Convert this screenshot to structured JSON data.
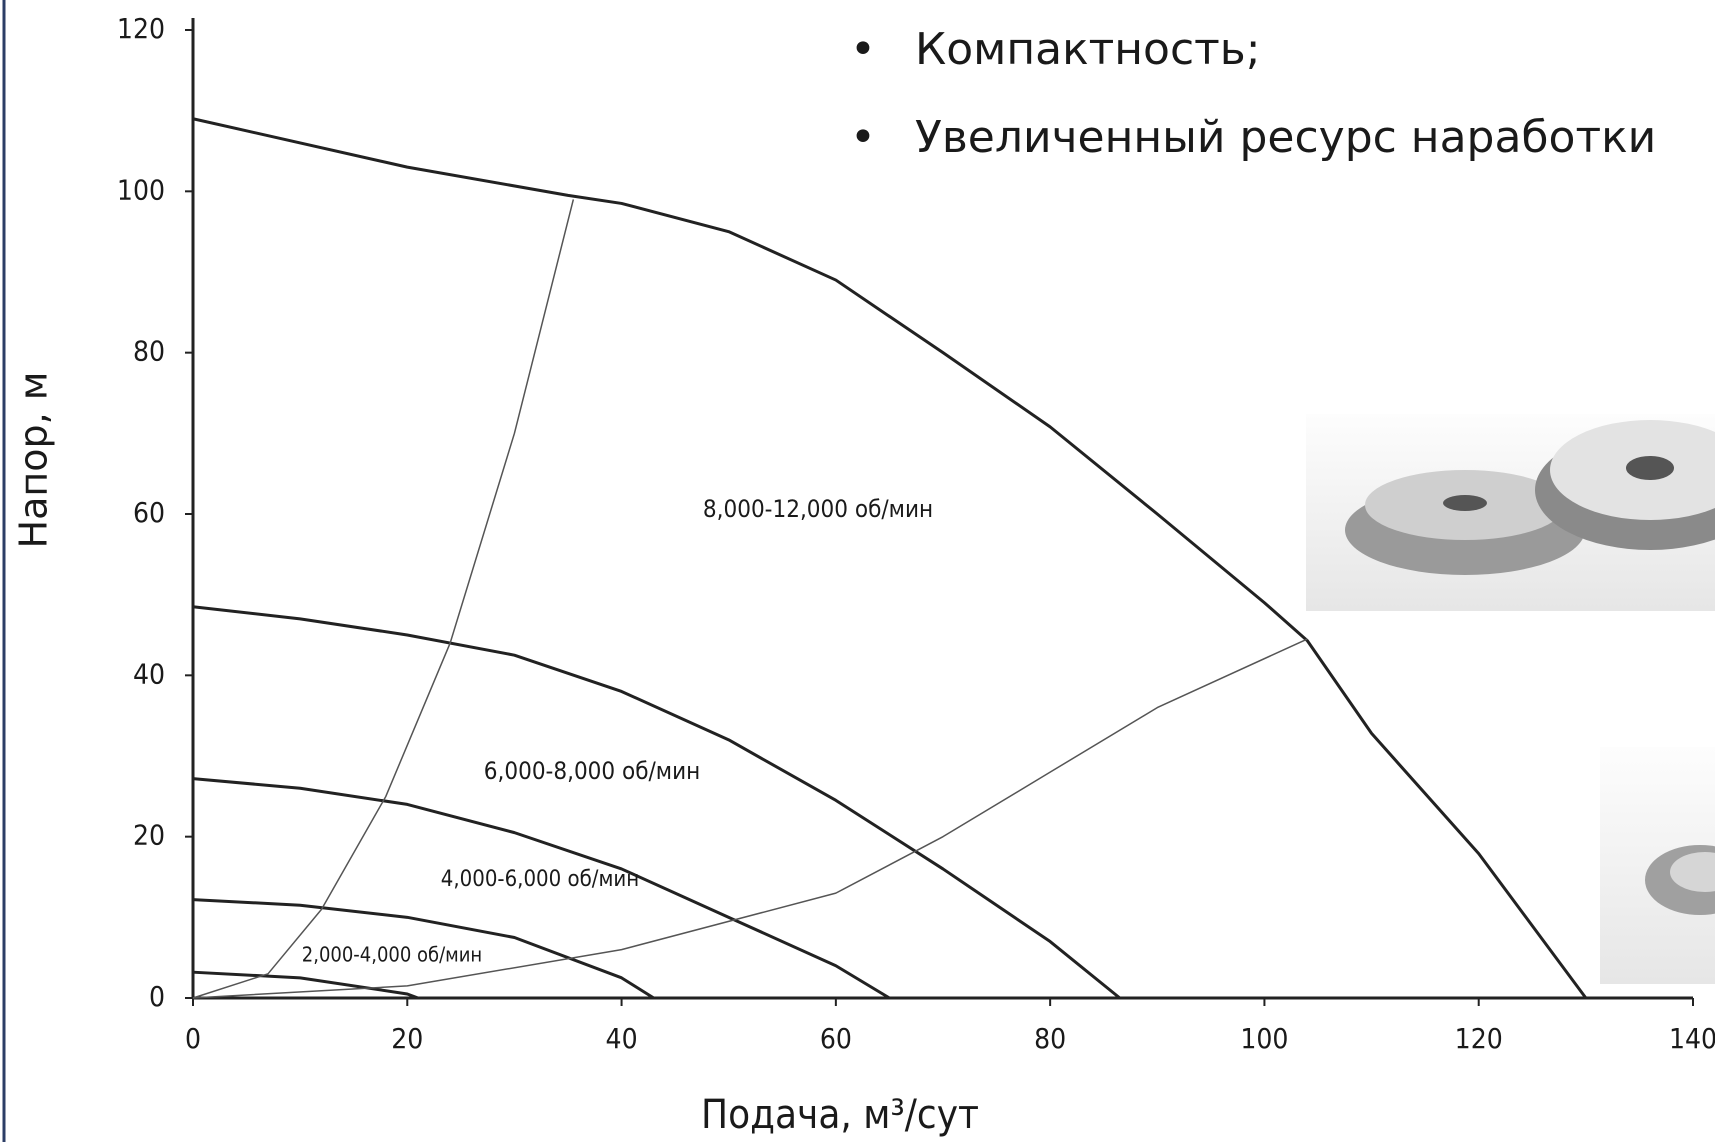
{
  "bullets": [
    "Компактность;",
    "Увеличенный ресурс наработки"
  ],
  "chart_data": {
    "type": "line",
    "x_label": "Подача, м³/сут",
    "y_label": "Напор, м",
    "xlim": [
      0,
      140
    ],
    "ylim": [
      0,
      120
    ],
    "xticks": [
      0,
      20,
      40,
      60,
      80,
      100,
      120,
      140
    ],
    "yticks": [
      0,
      20,
      40,
      60,
      80,
      100,
      120
    ],
    "grid": false,
    "annotations": [
      "8,000-12,000 об/мин",
      "6,000-8,000 об/мин",
      "4,000-6,000 об/мин",
      "2,000-4,000 об/мин"
    ],
    "series": [
      {
        "color": "#222222",
        "x": [
          0,
          20,
          35,
          40,
          50,
          60,
          70,
          80,
          90,
          100,
          104,
          110,
          120,
          130
        ],
        "values": [
          109,
          103,
          99.5,
          98.5,
          95,
          89,
          80,
          70.8,
          60,
          49,
          44.3,
          32.8,
          17.9,
          0
        ]
      },
      {
        "color": "#222222",
        "x": [
          0,
          10,
          20,
          30,
          40,
          50,
          60,
          70,
          80,
          86.5
        ],
        "values": [
          48.5,
          47,
          45,
          42.5,
          38,
          32,
          24.5,
          16,
          7,
          0
        ]
      },
      {
        "color": "#222222",
        "x": [
          0,
          10,
          20,
          30,
          40,
          50,
          60,
          65
        ],
        "values": [
          27.2,
          26,
          24,
          20.5,
          16,
          10,
          4,
          0
        ]
      },
      {
        "color": "#222222",
        "x": [
          0,
          10,
          20,
          30,
          40,
          43
        ],
        "values": [
          12.2,
          11.5,
          10,
          7.5,
          2.5,
          0
        ]
      },
      {
        "color": "#222222",
        "x": [
          0,
          10,
          20,
          21
        ],
        "values": [
          3.2,
          2.5,
          0.5,
          0
        ]
      },
      {
        "color": "#555555",
        "x": [
          0,
          7,
          12,
          18,
          24,
          30,
          35.5
        ],
        "values": [
          0,
          3,
          11,
          25,
          44,
          70,
          99
        ]
      },
      {
        "color": "#555555",
        "x": [
          0,
          20,
          40,
          60,
          70,
          80,
          90,
          104
        ],
        "values": [
          0,
          1.5,
          6,
          13,
          20,
          28,
          36,
          44.5
        ]
      }
    ]
  }
}
